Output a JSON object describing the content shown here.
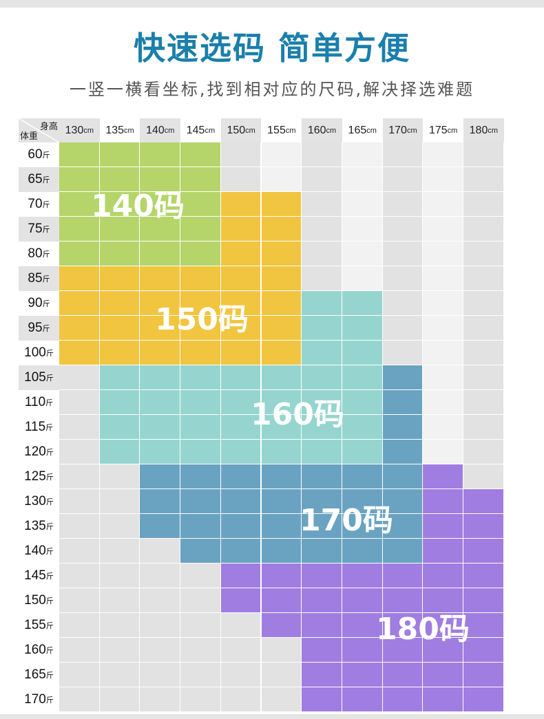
{
  "header": {
    "title": "快速选码 简单方便",
    "subtitle": "一竖一横看坐标,找到相对应的尺码,解决择选难题"
  },
  "corner": {
    "height_label": "身高",
    "weight_label": "体重"
  },
  "colors": {
    "title": "#1a7fab",
    "140码": "#b5d56a",
    "150码": "#f2c540",
    "160码": "#96d5cf",
    "170码": "#6aa3c1",
    "180码": "#a07de0",
    "empty_dark": "#e2e2e2",
    "empty_light": "#f2f2f2"
  },
  "chart_data": {
    "type": "heatmap",
    "title": "快速选码 简单方便",
    "xlabel": "身高",
    "ylabel": "体重",
    "x_unit": "cm",
    "y_unit": "斤",
    "heights": [
      "130",
      "135",
      "140",
      "145",
      "150",
      "155",
      "160",
      "165",
      "170",
      "175",
      "180"
    ],
    "weights": [
      "60",
      "65",
      "70",
      "75",
      "80",
      "85",
      "90",
      "95",
      "100",
      "105",
      "110",
      "115",
      "120",
      "125",
      "130",
      "135",
      "140",
      "145",
      "150",
      "155",
      "160",
      "165",
      "170"
    ],
    "sizes": [
      "140码",
      "150码",
      "160码",
      "170码",
      "180码"
    ],
    "grid": [
      [
        "140码",
        "140码",
        "140码",
        "140码",
        "",
        "",
        "",
        "",
        "",
        "",
        ""
      ],
      [
        "140码",
        "140码",
        "140码",
        "140码",
        "",
        "",
        "",
        "",
        "",
        "",
        ""
      ],
      [
        "140码",
        "140码",
        "140码",
        "140码",
        "150码",
        "150码",
        "",
        "",
        "",
        "",
        ""
      ],
      [
        "140码",
        "140码",
        "140码",
        "140码",
        "150码",
        "150码",
        "",
        "",
        "",
        "",
        ""
      ],
      [
        "140码",
        "140码",
        "140码",
        "140码",
        "150码",
        "150码",
        "",
        "",
        "",
        "",
        ""
      ],
      [
        "150码",
        "150码",
        "150码",
        "150码",
        "150码",
        "150码",
        "",
        "",
        "",
        "",
        ""
      ],
      [
        "150码",
        "150码",
        "150码",
        "150码",
        "150码",
        "150码",
        "160码",
        "160码",
        "",
        "",
        ""
      ],
      [
        "150码",
        "150码",
        "150码",
        "150码",
        "150码",
        "150码",
        "160码",
        "160码",
        "",
        "",
        ""
      ],
      [
        "150码",
        "150码",
        "150码",
        "150码",
        "150码",
        "150码",
        "160码",
        "160码",
        "",
        "",
        ""
      ],
      [
        "",
        "160码",
        "160码",
        "160码",
        "160码",
        "160码",
        "160码",
        "160码",
        "170码",
        "",
        ""
      ],
      [
        "",
        "160码",
        "160码",
        "160码",
        "160码",
        "160码",
        "160码",
        "160码",
        "170码",
        "",
        ""
      ],
      [
        "",
        "160码",
        "160码",
        "160码",
        "160码",
        "160码",
        "160码",
        "160码",
        "170码",
        "",
        ""
      ],
      [
        "",
        "160码",
        "160码",
        "160码",
        "160码",
        "160码",
        "160码",
        "160码",
        "170码",
        "",
        ""
      ],
      [
        "",
        "",
        "170码",
        "170码",
        "170码",
        "170码",
        "170码",
        "170码",
        "170码",
        "180码",
        ""
      ],
      [
        "",
        "",
        "170码",
        "170码",
        "170码",
        "170码",
        "170码",
        "170码",
        "170码",
        "180码",
        "180码"
      ],
      [
        "",
        "",
        "170码",
        "170码",
        "170码",
        "170码",
        "170码",
        "170码",
        "170码",
        "180码",
        "180码"
      ],
      [
        "",
        "",
        "",
        "170码",
        "170码",
        "170码",
        "170码",
        "170码",
        "170码",
        "180码",
        "180码"
      ],
      [
        "",
        "",
        "",
        "",
        "180码",
        "180码",
        "180码",
        "180码",
        "180码",
        "180码",
        "180码"
      ],
      [
        "",
        "",
        "",
        "",
        "180码",
        "180码",
        "180码",
        "180码",
        "180码",
        "180码",
        "180码"
      ],
      [
        "",
        "",
        "",
        "",
        "",
        "180码",
        "180码",
        "180码",
        "180码",
        "180码",
        "180码"
      ],
      [
        "",
        "",
        "",
        "",
        "",
        "",
        "180码",
        "180码",
        "180码",
        "180码",
        "180码"
      ],
      [
        "",
        "",
        "",
        "",
        "",
        "",
        "180码",
        "180码",
        "180码",
        "180码",
        "180码"
      ],
      [
        "",
        "",
        "",
        "",
        "",
        "",
        "180码",
        "180码",
        "180码",
        "180码",
        "180码"
      ]
    ]
  }
}
